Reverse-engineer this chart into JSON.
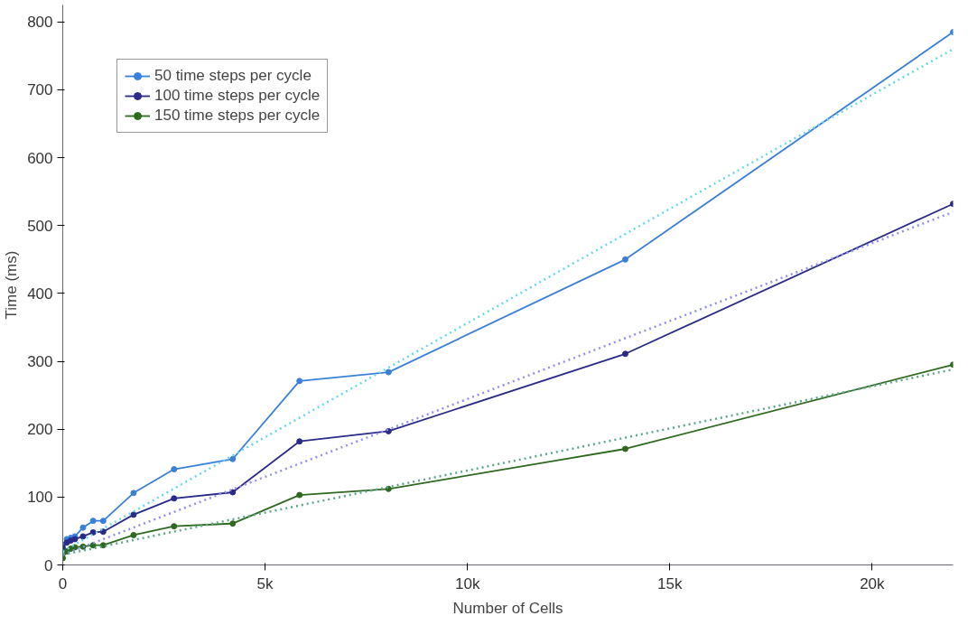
{
  "chart_data": {
    "type": "line",
    "xlabel": "Number of Cells",
    "ylabel": "Time (ms)",
    "xlim": [
      0,
      22000
    ],
    "ylim": [
      0,
      825
    ],
    "xticks": [
      0,
      {
        "value": 5000,
        "label": "5k"
      },
      {
        "value": 10000,
        "label": "10k"
      },
      {
        "value": 15000,
        "label": "15k"
      },
      {
        "value": 20000,
        "label": "20k"
      }
    ],
    "yticks": [
      0,
      100,
      200,
      300,
      400,
      500,
      600,
      700,
      800
    ],
    "grid": false,
    "legend": "top left",
    "marker": "circle",
    "line_style": "solid",
    "series": [
      {
        "name": "50 time steps per cycle",
        "color": "#3a80da",
        "x": [
          0,
          100,
          200,
          300,
          500,
          750,
          1000,
          1750,
          2750,
          4200,
          5850,
          8050,
          13900,
          22000
        ],
        "values": [
          30,
          38,
          40,
          42,
          55,
          65,
          65,
          106,
          141,
          156,
          271,
          284,
          450,
          785
        ]
      },
      {
        "name": "100 time steps per cycle",
        "color": "#2a2a8a",
        "x": [
          0,
          100,
          200,
          300,
          500,
          750,
          1000,
          1750,
          2750,
          4200,
          5850,
          8050,
          13900,
          22000
        ],
        "values": [
          25,
          33,
          36,
          38,
          42,
          48,
          49,
          74,
          98,
          107,
          182,
          197,
          311,
          532
        ]
      },
      {
        "name": "150 time steps per cycle",
        "color": "#2d6a1f",
        "x": [
          0,
          100,
          200,
          300,
          500,
          750,
          1000,
          1750,
          2750,
          4200,
          5850,
          8050,
          13900,
          22000
        ],
        "values": [
          10,
          20,
          24,
          26,
          27,
          29,
          29,
          44,
          57,
          61,
          103,
          112,
          171,
          295
        ]
      },
      {
        "type": "line",
        "color": "#66d9e8",
        "x": [
          0,
          22000
        ],
        "values": [
          20,
          760
        ],
        "marker": "none",
        "line_style": "dotted"
      },
      {
        "type": "line",
        "color": "#8f8fef",
        "x": [
          0,
          22000
        ],
        "values": [
          15,
          520
        ],
        "marker": "none",
        "line_style": "dotted"
      },
      {
        "type": "line",
        "color": "#5aa88a",
        "x": [
          0,
          22000
        ],
        "values": [
          15,
          288
        ],
        "marker": "none",
        "line_style": "dotted"
      }
    ]
  }
}
